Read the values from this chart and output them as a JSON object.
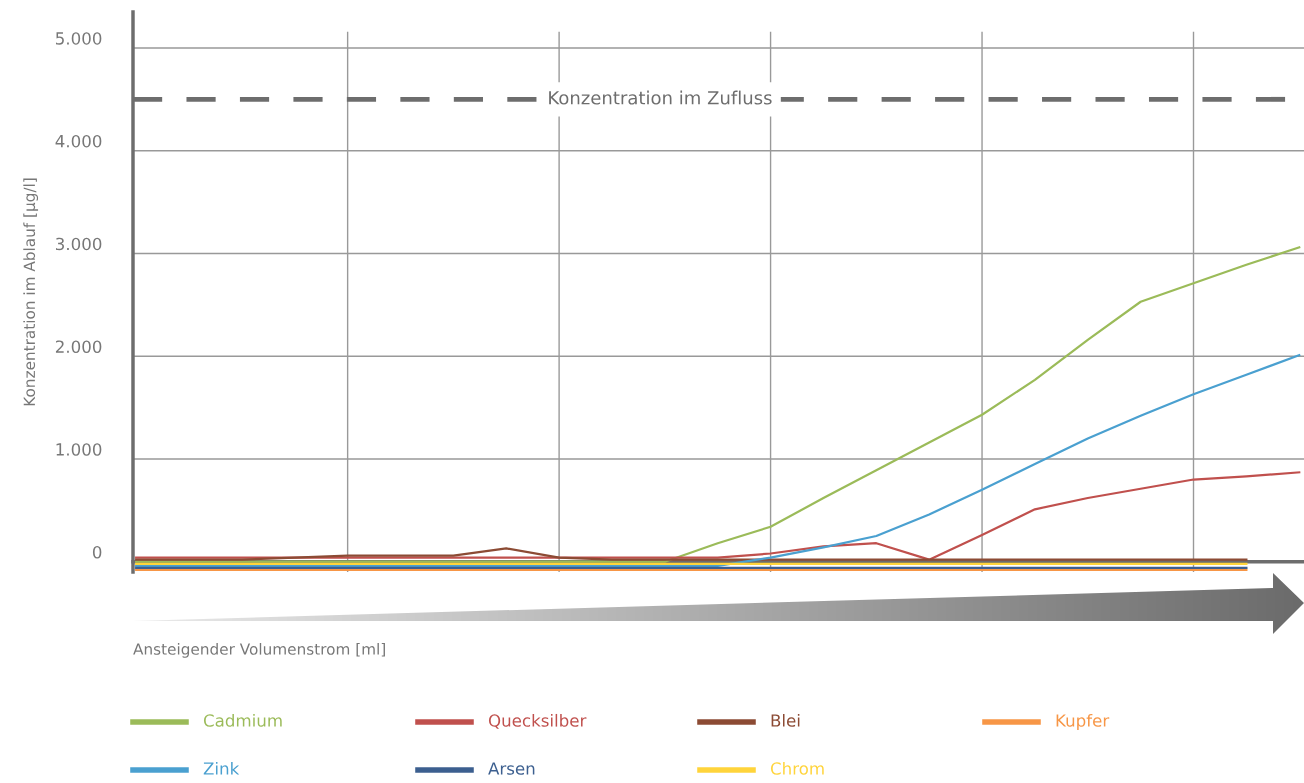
{
  "chart_data": {
    "type": "line",
    "ylabel": "Konzentration im Ablauf [µg/l]",
    "xlabel": "Ansteigender Volumenstrom [ml]",
    "categories": [
      null,
      null,
      null,
      null,
      null,
      null,
      null,
      null,
      null,
      null,
      null,
      null,
      null,
      null,
      null,
      null,
      null,
      null,
      null,
      null,
      null,
      null,
      null
    ],
    "ylim": [
      -100,
      5350
    ],
    "yticks": [
      {
        "value": 0,
        "label": "0"
      },
      {
        "value": 1000,
        "label": "1.000"
      },
      {
        "value": 2000,
        "label": "2.000"
      },
      {
        "value": 3000,
        "label": "3.000"
      },
      {
        "value": 4000,
        "label": "4.000"
      },
      {
        "value": 5000,
        "label": "5.000"
      }
    ],
    "grid": true,
    "legend": "bottom",
    "line_style": "solid",
    "marker": "none",
    "ref_lines": [
      {
        "axis": "y",
        "value": 4500,
        "label": "Konzentration im Zufluss",
        "color": "#6d6d6d",
        "line_style": "dashed"
      }
    ],
    "series": [
      {
        "name": "Cadmium",
        "color": "#9bbb59",
        "values": [
          0,
          0,
          0,
          0,
          0,
          0,
          0,
          0,
          0,
          0,
          0,
          180,
          340,
          620,
          890,
          1160,
          1430,
          1770,
          2160,
          2530,
          2710,
          2890,
          3060
        ]
      },
      {
        "name": "Quecksilber",
        "color": "#c0504d",
        "values": [
          40,
          40,
          40,
          40,
          40,
          40,
          40,
          40,
          40,
          40,
          40,
          40,
          80,
          150,
          180,
          20,
          260,
          510,
          620,
          710,
          800,
          830,
          870
        ]
      },
      {
        "name": "Blei",
        "color": "#8c4b34",
        "values": [
          20,
          20,
          20,
          40,
          60,
          60,
          60,
          130,
          40,
          20,
          20,
          20,
          20,
          20,
          20,
          20,
          20,
          20,
          20,
          20,
          20,
          20,
          null
        ]
      },
      {
        "name": "Kupfer",
        "color": "#f79646",
        "values": [
          -80,
          -80,
          -80,
          -80,
          -80,
          -80,
          -80,
          -80,
          -80,
          -80,
          -80,
          -80,
          -80,
          -80,
          -80,
          -80,
          -80,
          -80,
          -80,
          -80,
          -80,
          -80,
          null
        ]
      },
      {
        "name": "Zink",
        "color": "#4aa0d0",
        "values": [
          -40,
          -40,
          -40,
          -40,
          -40,
          -40,
          -40,
          -40,
          -40,
          -40,
          -40,
          -40,
          40,
          140,
          250,
          460,
          700,
          950,
          1200,
          1420,
          1630,
          1820,
          2010
        ]
      },
      {
        "name": "Arsen",
        "color": "#3c5f8f",
        "values": [
          -60,
          -60,
          -60,
          -60,
          -60,
          -60,
          -60,
          -60,
          -60,
          -60,
          -60,
          -60,
          -60,
          -60,
          -60,
          -60,
          -60,
          -60,
          -60,
          -60,
          -60,
          -60,
          null
        ]
      },
      {
        "name": "Chrom",
        "color": "#ffd43b",
        "values": [
          -20,
          -20,
          -20,
          -20,
          -20,
          -20,
          -20,
          -20,
          -20,
          -20,
          -20,
          -20,
          -20,
          -20,
          -20,
          -20,
          -20,
          -20,
          -20,
          -20,
          -20,
          -20,
          null
        ]
      }
    ]
  }
}
